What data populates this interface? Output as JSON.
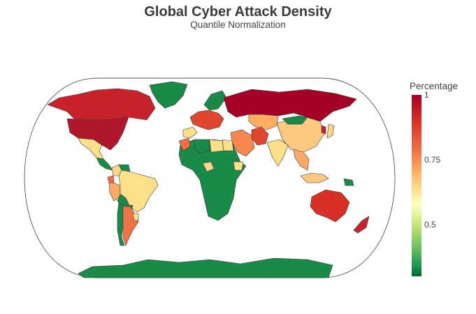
{
  "header": {
    "title": "Global Cyber Attack Density",
    "subtitle": "Quantile Normalization"
  },
  "legend": {
    "title": "Percentage",
    "ticks": [
      "1",
      "0.75",
      "0.5"
    ],
    "colorscale": [
      "#a50026",
      "#d73027",
      "#f46d43",
      "#fdae61",
      "#fee08b",
      "#ffffbf",
      "#d9ef8b",
      "#a6d96a",
      "#66bd63",
      "#1a9850",
      "#006837"
    ],
    "range": [
      0.27,
      1
    ]
  },
  "map": {
    "projection": "natural-earth",
    "frame_stroke": "#555555",
    "regions": [
      {
        "name": "Greenland",
        "value": 0.27,
        "color": "#1a8a48"
      },
      {
        "name": "Canada",
        "value": 0.97,
        "color": "#c8222b"
      },
      {
        "name": "United States",
        "value": 1.0,
        "color": "#b0172d"
      },
      {
        "name": "Mexico",
        "value": 0.72,
        "color": "#fee08b"
      },
      {
        "name": "Central America",
        "value": 0.3,
        "color": "#1a8a48"
      },
      {
        "name": "Colombia",
        "value": 0.73,
        "color": "#fdd58a"
      },
      {
        "name": "Venezuela",
        "value": 0.3,
        "color": "#1a8a48"
      },
      {
        "name": "Ecuador",
        "value": 0.85,
        "color": "#f46d43"
      },
      {
        "name": "Peru",
        "value": 0.8,
        "color": "#fba968"
      },
      {
        "name": "Brazil",
        "value": 0.74,
        "color": "#fee08b"
      },
      {
        "name": "Bolivia",
        "value": 0.3,
        "color": "#1a8a48"
      },
      {
        "name": "Paraguay",
        "value": 0.3,
        "color": "#1a8a48"
      },
      {
        "name": "Chile",
        "value": 0.3,
        "color": "#1a8a48"
      },
      {
        "name": "Argentina",
        "value": 0.86,
        "color": "#ee7448"
      },
      {
        "name": "Uruguay",
        "value": 0.72,
        "color": "#fee08b"
      },
      {
        "name": "Europe West",
        "value": 0.88,
        "color": "#e0452d"
      },
      {
        "name": "Scandinavia",
        "value": 0.3,
        "color": "#1a8a48"
      },
      {
        "name": "Spain",
        "value": 0.73,
        "color": "#fee08b"
      },
      {
        "name": "Russia",
        "value": 1.0,
        "color": "#a50026"
      },
      {
        "name": "Kazakhstan",
        "value": 0.78,
        "color": "#fdae61"
      },
      {
        "name": "China",
        "value": 0.78,
        "color": "#fdc981"
      },
      {
        "name": "Mongolia",
        "value": 0.3,
        "color": "#1a8a48"
      },
      {
        "name": "Middle East",
        "value": 0.83,
        "color": "#f7874f"
      },
      {
        "name": "Iran",
        "value": 0.88,
        "color": "#e0452d"
      },
      {
        "name": "India",
        "value": 0.72,
        "color": "#fee08b"
      },
      {
        "name": "Southeast Asia",
        "value": 0.8,
        "color": "#fba968"
      },
      {
        "name": "Japan",
        "value": 0.76,
        "color": "#fdd58a"
      },
      {
        "name": "Korea",
        "value": 0.95,
        "color": "#c8222b"
      },
      {
        "name": "Indonesia",
        "value": 0.78,
        "color": "#fdc981"
      },
      {
        "name": "Papua New Guinea",
        "value": 0.3,
        "color": "#1a8a48"
      },
      {
        "name": "Australia",
        "value": 0.93,
        "color": "#d73027"
      },
      {
        "name": "New Zealand",
        "value": 0.97,
        "color": "#c8222b"
      },
      {
        "name": "Africa",
        "value": 0.3,
        "color": "#1a8a48"
      },
      {
        "name": "Algeria",
        "value": 0.3,
        "color": "#1a8a48"
      },
      {
        "name": "Libya",
        "value": 0.73,
        "color": "#fee08b"
      },
      {
        "name": "Egypt",
        "value": 0.73,
        "color": "#fee08b"
      },
      {
        "name": "Nigeria",
        "value": 0.74,
        "color": "#fdd58a"
      },
      {
        "name": "Ethiopia",
        "value": 0.74,
        "color": "#fee08b"
      },
      {
        "name": "Morocco",
        "value": 0.85,
        "color": "#f46d43"
      },
      {
        "name": "Antarctica",
        "value": 0.3,
        "color": "#1a8a48"
      }
    ]
  }
}
